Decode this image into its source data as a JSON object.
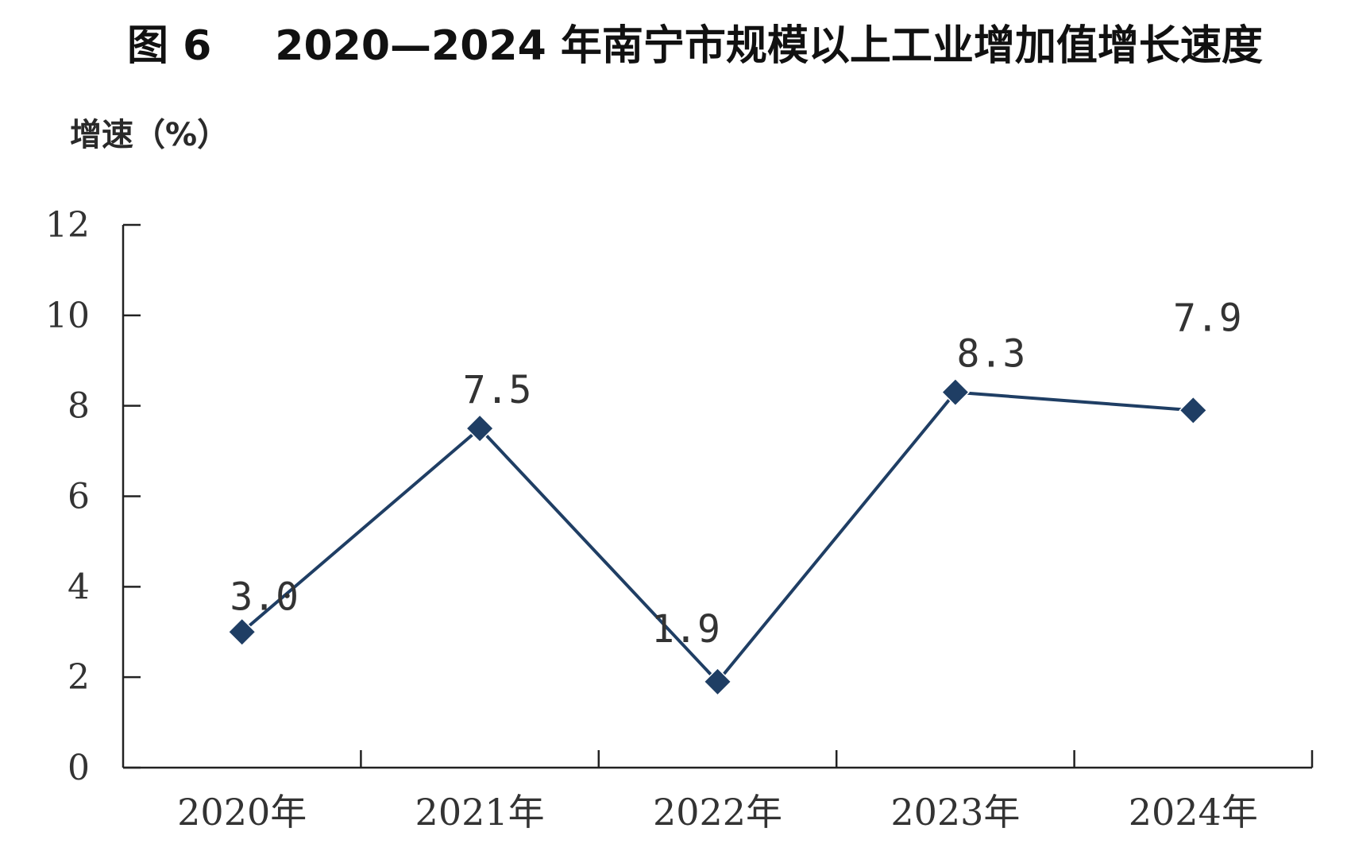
{
  "chart_data": {
    "type": "line",
    "title": "2020—2024 年南宁市规模以上工业增加值增长速度",
    "figure_number": "图 6",
    "ylabel": "增速（%）",
    "xlabel": "",
    "categories": [
      "2020年",
      "2021年",
      "2022年",
      "2023年",
      "2024年"
    ],
    "series": [
      {
        "values": [
          3.0,
          7.5,
          1.9,
          8.3,
          7.9
        ],
        "data_labels": [
          "3.0",
          "7.5",
          "1.9",
          "8.3",
          "7.9"
        ],
        "color": "#1f3e64",
        "marker": "diamond"
      }
    ],
    "ylim": [
      0,
      12
    ],
    "yticks": [
      0,
      2,
      4,
      6,
      8,
      10,
      12
    ],
    "grid": false,
    "legend": "none"
  }
}
